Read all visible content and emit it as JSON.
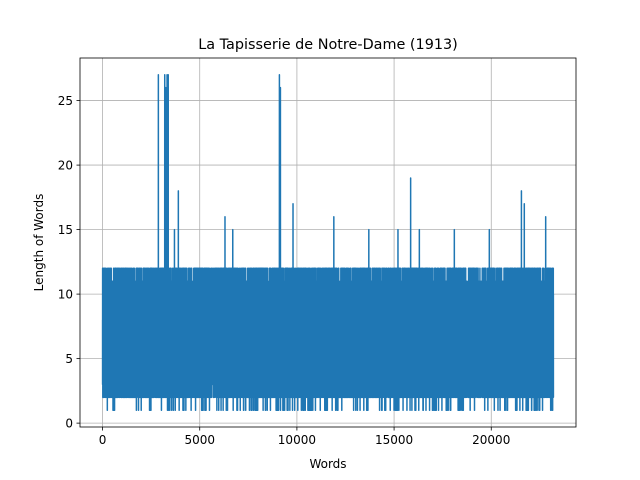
{
  "chart_data": {
    "type": "line",
    "title": "La Tapisserie de Notre-Dame (1913)",
    "xlabel": "Words",
    "ylabel": "Length of Words",
    "xlim": [
      -1160,
      24360
    ],
    "ylim": [
      -0.3,
      28.3
    ],
    "xticks": [
      0,
      5000,
      10000,
      15000,
      20000
    ],
    "yticks": [
      0,
      5,
      10,
      15,
      20,
      25
    ],
    "grid": true,
    "series": [
      {
        "color": "#1f77b4",
        "n_points": 23200,
        "baseline_min": 3,
        "baseline_max": 12,
        "spikes": [
          {
            "x": 2870,
            "y": 27
          },
          {
            "x": 3200,
            "y": 27
          },
          {
            "x": 3260,
            "y": 26
          },
          {
            "x": 3320,
            "y": 27
          },
          {
            "x": 3380,
            "y": 27
          },
          {
            "x": 3900,
            "y": 18
          },
          {
            "x": 3700,
            "y": 15
          },
          {
            "x": 6300,
            "y": 16
          },
          {
            "x": 6700,
            "y": 15
          },
          {
            "x": 9100,
            "y": 27
          },
          {
            "x": 9150,
            "y": 26
          },
          {
            "x": 9800,
            "y": 17
          },
          {
            "x": 11900,
            "y": 16
          },
          {
            "x": 13700,
            "y": 15
          },
          {
            "x": 15200,
            "y": 15
          },
          {
            "x": 15850,
            "y": 19
          },
          {
            "x": 16300,
            "y": 15
          },
          {
            "x": 18100,
            "y": 15
          },
          {
            "x": 19900,
            "y": 15
          },
          {
            "x": 21550,
            "y": 18
          },
          {
            "x": 21700,
            "y": 17
          },
          {
            "x": 22800,
            "y": 16
          }
        ]
      }
    ]
  }
}
